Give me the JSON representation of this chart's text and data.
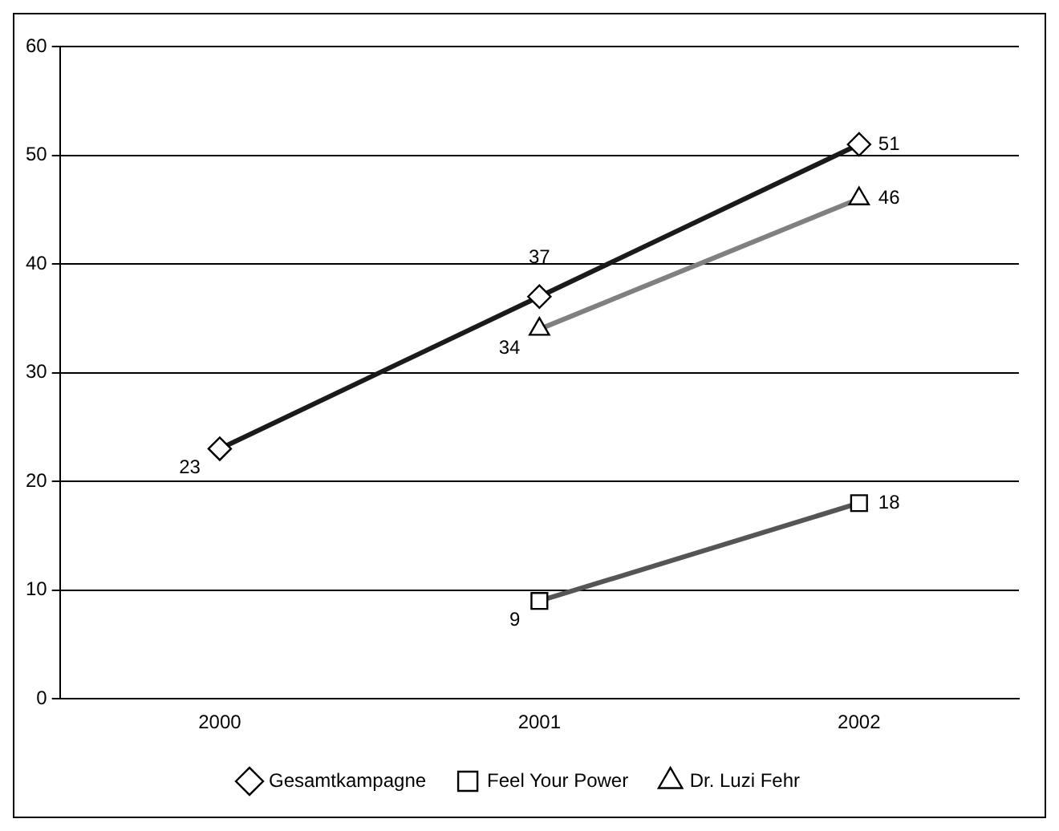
{
  "chart_data": {
    "type": "line",
    "categories": [
      "2000",
      "2001",
      "2002"
    ],
    "series": [
      {
        "name": "Gesamtkampagne",
        "color": "#1a1a1a",
        "marker": "diamond",
        "values": [
          23,
          37,
          51
        ]
      },
      {
        "name": "Feel Your Power",
        "color": "#555555",
        "marker": "square",
        "values": [
          null,
          9,
          18
        ]
      },
      {
        "name": "Dr. Luzi Fehr",
        "color": "#808080",
        "marker": "triangle",
        "values": [
          null,
          34,
          46
        ]
      }
    ],
    "ylim": [
      0,
      60
    ],
    "yticks": [
      0,
      10,
      20,
      30,
      40,
      50,
      60
    ],
    "grid": "y",
    "legend": "bottom",
    "data_labels": true
  }
}
